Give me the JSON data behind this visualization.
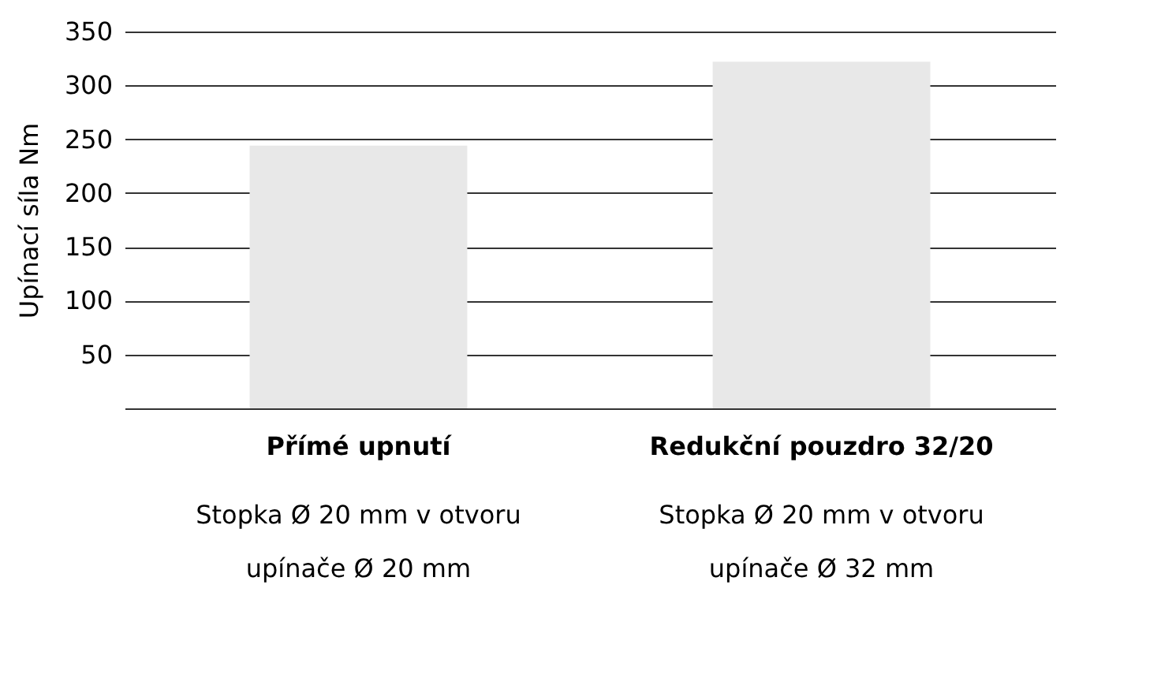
{
  "chart_data": {
    "type": "bar",
    "ylabel": "Upínací síla Nm",
    "categories": [
      "Přímé upnutí",
      "Redukční pouzdro 32/20"
    ],
    "values": [
      244,
      322
    ],
    "color": "#e8e8e8",
    "ylim": [
      0,
      350
    ],
    "yticks": [
      50,
      100,
      150,
      200,
      250,
      300,
      350
    ],
    "grid": "y",
    "annotations": [
      "Stopka Ø 20 mm v otvoru\nupínače Ø 20 mm",
      "Stopka Ø 20 mm v otvoru\nupínače Ø 32 mm"
    ]
  }
}
